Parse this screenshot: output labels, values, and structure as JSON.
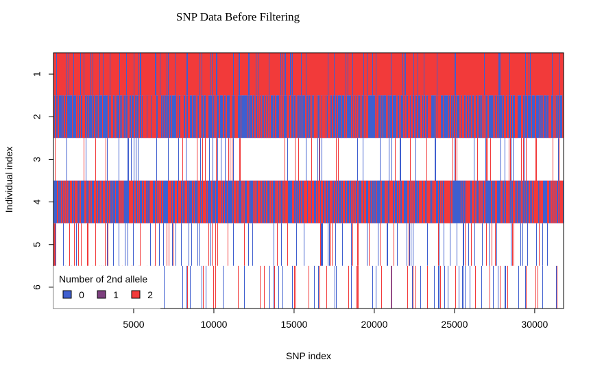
{
  "chart_data": {
    "type": "heatmap",
    "title": "SNP Data Before Filtering",
    "xlabel": "SNP index",
    "ylabel": "Individual index",
    "xlim": [
      1,
      31800
    ],
    "x_ticks": [
      5000,
      10000,
      15000,
      20000,
      25000,
      30000
    ],
    "rows": [
      {
        "label": "1",
        "background": "2",
        "density": 0.55,
        "mix": [
          0.15,
          0.85
        ],
        "seed": 11
      },
      {
        "label": "2",
        "background": "0",
        "density": 0.45,
        "mix": [
          0.0,
          1.0
        ],
        "seed": 23
      },
      {
        "label": "3",
        "background": "none",
        "density": 0.11,
        "mix": [
          0.55,
          0.45
        ],
        "seed": 37
      },
      {
        "label": "4",
        "background": "0",
        "density": 0.5,
        "mix": [
          0.0,
          1.0
        ],
        "seed": 41
      },
      {
        "label": "5",
        "background": "none",
        "density": 0.13,
        "mix": [
          0.62,
          0.38
        ],
        "seed": 53
      },
      {
        "label": "6",
        "background": "none",
        "density": 0.13,
        "mix": [
          0.55,
          0.45
        ],
        "seed": 67
      }
    ],
    "legend": {
      "title": "Number of 2nd allele",
      "position": "bottom-left",
      "items": [
        {
          "label": "0",
          "color": "#3f5fcf"
        },
        {
          "label": "1",
          "color": "#7d3f7e"
        },
        {
          "label": "2",
          "color": "#f23a3a"
        }
      ]
    },
    "colors": {
      "0": "#3f5fcf",
      "1": "#7d3f7e",
      "2": "#f23a3a",
      "none": "#ffffff"
    }
  }
}
